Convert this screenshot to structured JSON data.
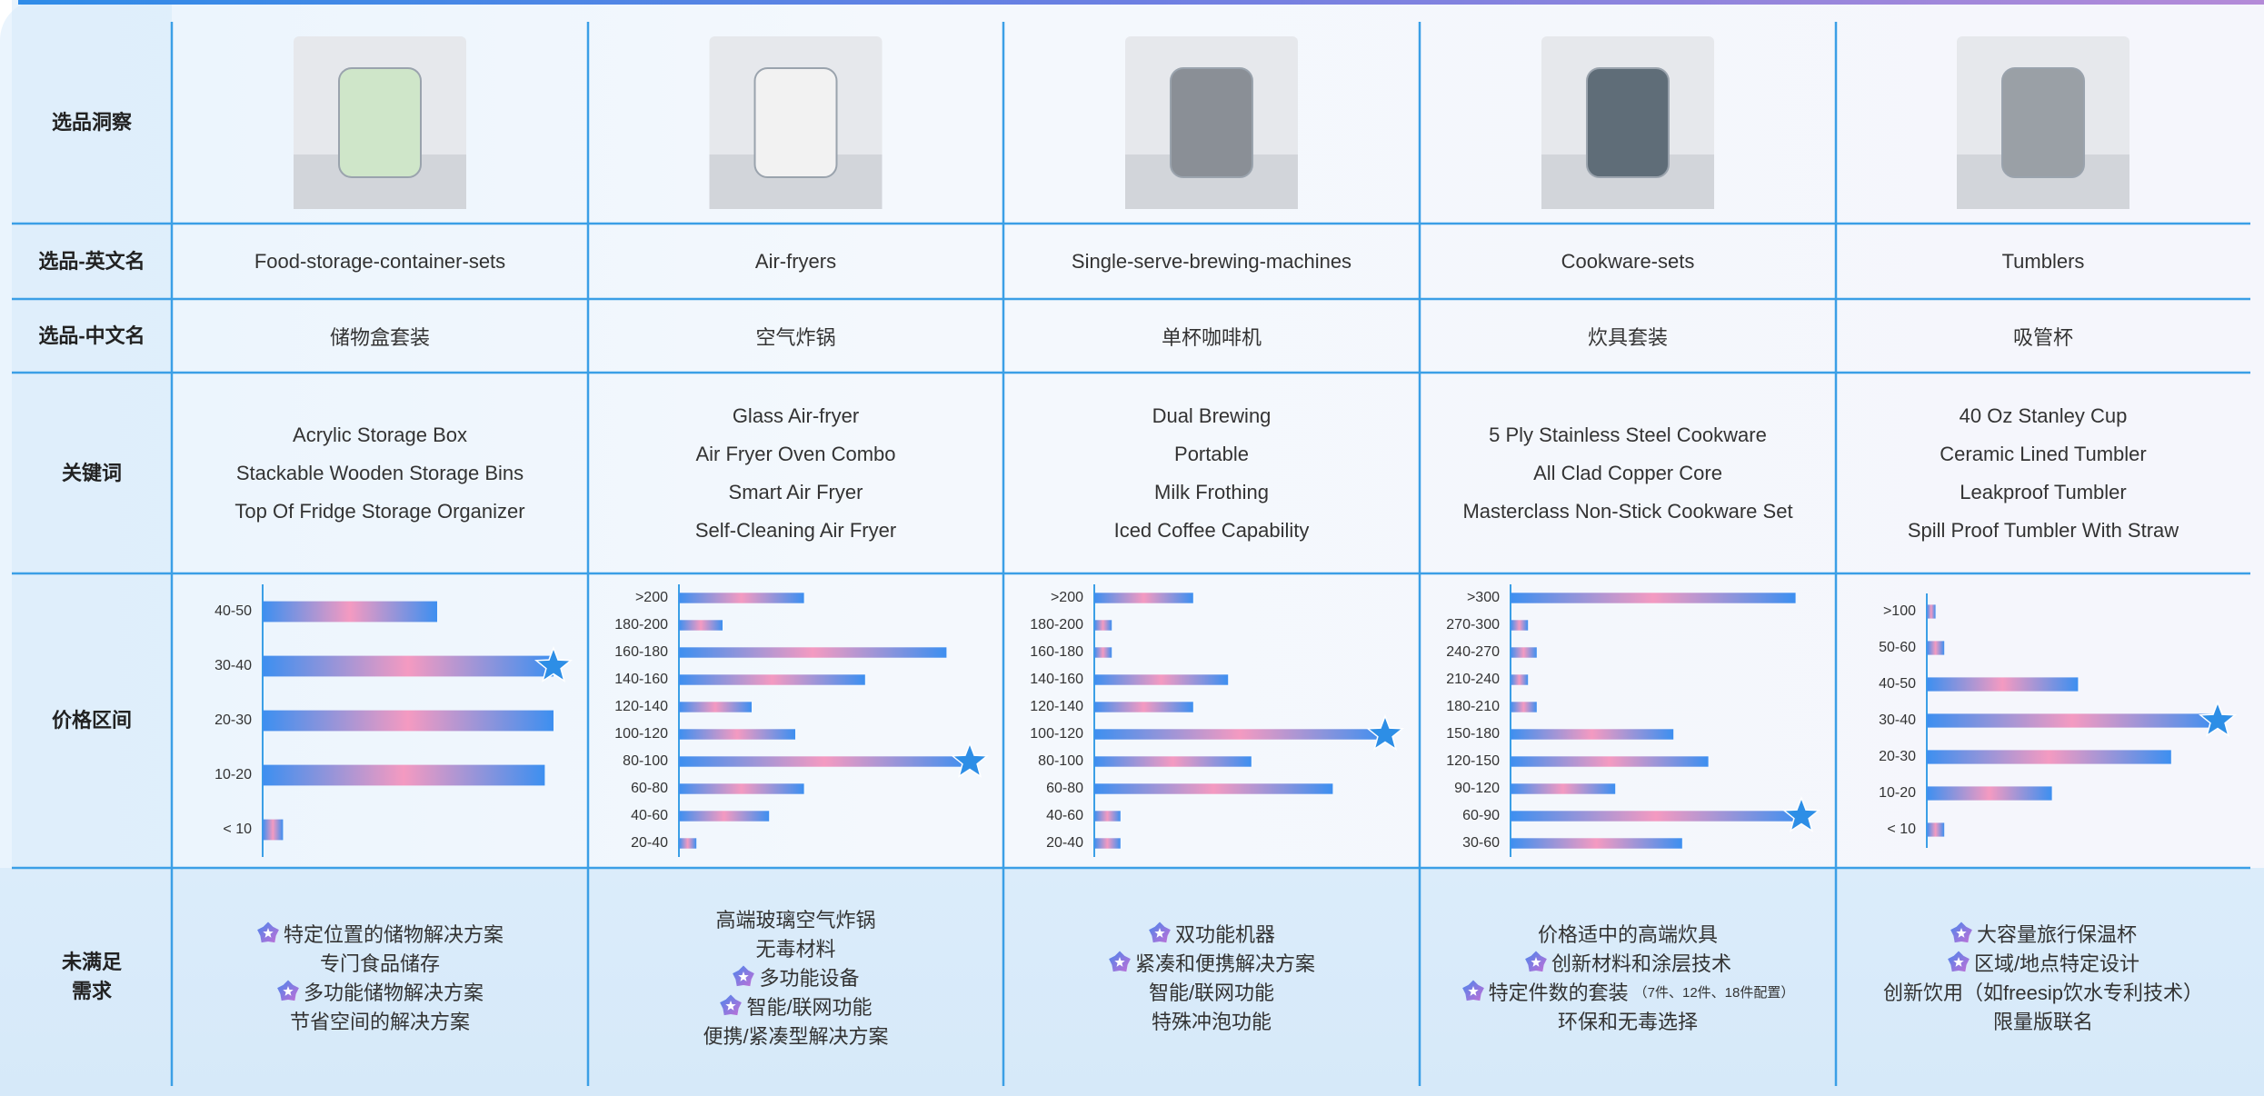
{
  "row_headers": [
    "选品洞察",
    "选品-英文名",
    "选品-中文名",
    "关键词",
    "价格区间",
    "未满足\n需求"
  ],
  "bar_gradient": [
    "#3d8ff0",
    "#f49ac1",
    "#3d8ff0"
  ],
  "star_color": "#2d8ee6",
  "products": [
    {
      "name_en": "Food-storage-container-sets",
      "name_zh": "储物盒套装",
      "keywords": [
        "Acrylic Storage Box",
        "Stackable Wooden Storage Bins",
        "Top Of Fridge Storage Organizer"
      ],
      "price_chart": {
        "type": "bar",
        "orientation": "horizontal",
        "categories": [
          "40-50",
          "30-40",
          "20-30",
          "10-20",
          "< 10"
        ],
        "values": [
          60,
          100,
          100,
          97,
          7
        ],
        "highlight": 1
      },
      "needs": [
        {
          "text": "特定位置的储物解决方案",
          "icon": true
        },
        {
          "text": "专门食品储存",
          "icon": false
        },
        {
          "text": "多功能储物解决方案",
          "icon": true
        },
        {
          "text": "节省空间的解决方案",
          "icon": false
        }
      ]
    },
    {
      "name_en": "Air-fryers",
      "name_zh": "空气炸锅",
      "keywords": [
        "Glass Air-fryer",
        "Air Fryer Oven Combo",
        "Smart Air Fryer",
        "Self-Cleaning Air Fryer"
      ],
      "price_chart": {
        "type": "bar",
        "orientation": "horizontal",
        "categories": [
          ">200",
          "180-200",
          "160-180",
          "140-160",
          "120-140",
          "100-120",
          "80-100",
          "60-80",
          "40-60",
          "20-40"
        ],
        "values": [
          43,
          15,
          92,
          64,
          25,
          40,
          100,
          43,
          31,
          6
        ],
        "highlight": 6
      },
      "needs": [
        {
          "text": "高端玻璃空气炸锅",
          "icon": false
        },
        {
          "text": "无毒材料",
          "icon": false
        },
        {
          "text": "多功能设备",
          "icon": true
        },
        {
          "text": "智能/联网功能",
          "icon": true
        },
        {
          "text": "便携/紧凑型解决方案",
          "icon": false
        }
      ]
    },
    {
      "name_en": "Single-serve-brewing-machines",
      "name_zh": "单杯咖啡机",
      "keywords": [
        "Dual Brewing",
        "Portable",
        "Milk Frothing",
        "Iced Coffee Capability"
      ],
      "price_chart": {
        "type": "bar",
        "orientation": "horizontal",
        "categories": [
          ">200",
          "180-200",
          "160-180",
          "140-160",
          "120-140",
          "100-120",
          "80-100",
          "60-80",
          "40-60",
          "20-40"
        ],
        "values": [
          34,
          6,
          6,
          46,
          34,
          100,
          54,
          82,
          9,
          9
        ],
        "highlight": 5
      },
      "needs": [
        {
          "text": "双功能机器",
          "icon": true
        },
        {
          "text": "紧凑和便携解决方案",
          "icon": true
        },
        {
          "text": "智能/联网功能",
          "icon": false
        },
        {
          "text": "特殊冲泡功能",
          "icon": false
        }
      ]
    },
    {
      "name_en": "Cookware-sets",
      "name_zh": "炊具套装",
      "keywords": [
        "5 Ply Stainless Steel Cookware",
        "All Clad Copper Core",
        "Masterclass Non-Stick Cookware Set"
      ],
      "price_chart": {
        "type": "bar",
        "orientation": "horizontal",
        "categories": [
          ">300",
          "270-300",
          "240-270",
          "210-240",
          "180-210",
          "150-180",
          "120-150",
          "90-120",
          "60-90",
          "30-60"
        ],
        "values": [
          98,
          6,
          9,
          6,
          9,
          56,
          68,
          36,
          100,
          59
        ],
        "highlight": 8
      },
      "needs": [
        {
          "text": "价格适中的高端炊具",
          "icon": false
        },
        {
          "text": "创新材料和涂层技术",
          "icon": true
        },
        {
          "text": "特定件数的套装",
          "icon": true,
          "note": "（7件、12件、18件配置）"
        },
        {
          "text": "环保和无毒选择",
          "icon": false
        }
      ]
    },
    {
      "name_en": "Tumblers",
      "name_zh": "吸管杯",
      "keywords": [
        "40 Oz Stanley Cup",
        "Ceramic Lined Tumbler",
        "Leakproof Tumbler",
        "Spill Proof Tumbler With Straw"
      ],
      "price_chart": {
        "type": "bar",
        "orientation": "horizontal",
        "categories": [
          ">100",
          "50-60",
          "40-50",
          "30-40",
          "20-30",
          "10-20",
          "< 10"
        ],
        "values": [
          3,
          6,
          52,
          100,
          84,
          43,
          6
        ],
        "highlight": 3
      },
      "needs": [
        {
          "text": "大容量旅行保温杯",
          "icon": true
        },
        {
          "text": "区域/地点特定设计",
          "icon": true
        },
        {
          "text": "创新饮用（如freesip饮水专利技术）",
          "icon": false
        },
        {
          "text": "限量版联名",
          "icon": false
        }
      ]
    }
  ]
}
